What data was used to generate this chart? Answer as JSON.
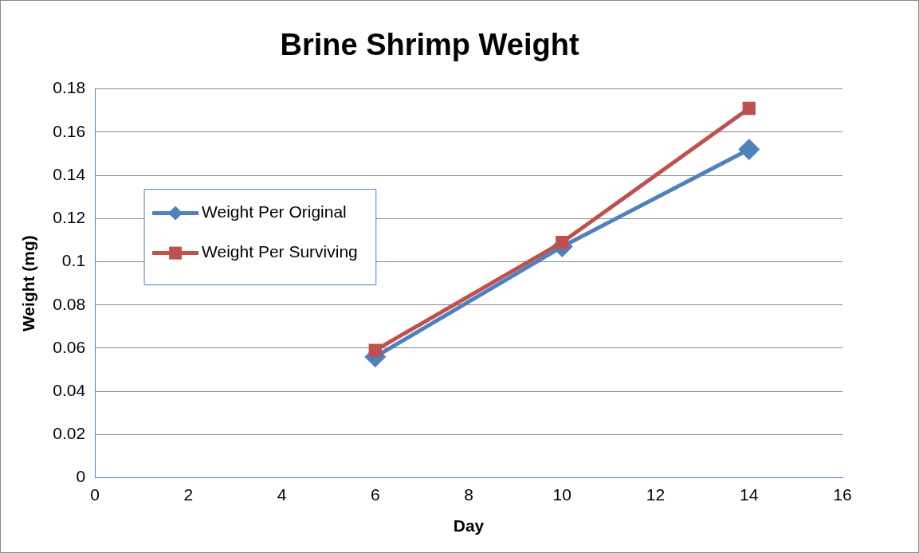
{
  "chart_data": {
    "type": "line",
    "title": "Brine Shrimp Weight",
    "xlabel": "Day",
    "ylabel": "Weight (mg)",
    "x": [
      6,
      10,
      14
    ],
    "series": [
      {
        "name": "Weight Per Original",
        "color": "#4f81bd",
        "values": [
          0.056,
          0.107,
          0.152
        ],
        "marker": "diamond"
      },
      {
        "name": "Weight Per Surviving",
        "color": "#c0504d",
        "values": [
          0.059,
          0.109,
          0.171
        ],
        "marker": "square"
      }
    ],
    "xlim": [
      0,
      16
    ],
    "xticks": [
      0,
      2,
      4,
      6,
      8,
      10,
      12,
      14,
      16
    ],
    "ylim": [
      0,
      0.18
    ],
    "yticks": [
      0,
      0.02,
      0.04,
      0.06,
      0.08,
      0.1,
      0.12,
      0.14,
      0.16,
      0.18
    ],
    "grid": "y",
    "legend": "left",
    "line_style": "solid"
  }
}
